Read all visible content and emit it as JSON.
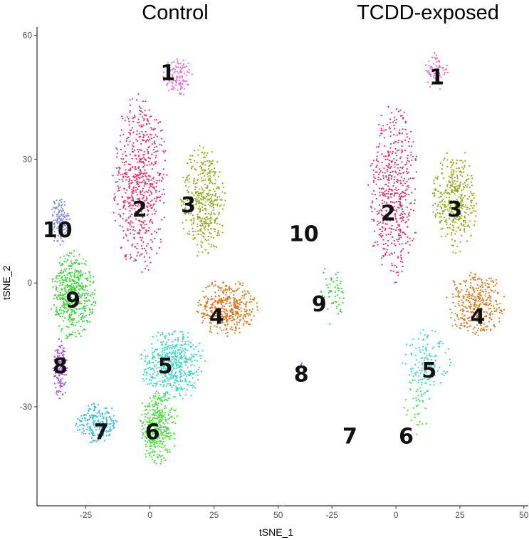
{
  "chart_data": {
    "type": "scatter",
    "xlabel": "tSNE_1",
    "ylabel": "tSNE_2",
    "xlim": [
      -44,
      52
    ],
    "ylim": [
      -54,
      62
    ],
    "x_ticks": [
      -25,
      0,
      25,
      50
    ],
    "y_ticks": [
      -30,
      0,
      30,
      60
    ],
    "grid": false,
    "clusters": [
      {
        "id": "1",
        "color": "#E36BE0"
      },
      {
        "id": "2",
        "color": "#E2306E"
      },
      {
        "id": "3",
        "color": "#93AA1C"
      },
      {
        "id": "4",
        "color": "#D67A21"
      },
      {
        "id": "5",
        "color": "#36D9C4"
      },
      {
        "id": "6",
        "color": "#47E039"
      },
      {
        "id": "7",
        "color": "#33B8E6"
      },
      {
        "id": "8",
        "color": "#A24CE0"
      },
      {
        "id": "9",
        "color": "#3CD63C"
      },
      {
        "id": "10",
        "color": "#7F84DB"
      }
    ],
    "panels": [
      {
        "title": "Control",
        "cluster_regions": [
          {
            "id": "1",
            "label_x": 7,
            "label_y": 51,
            "cx": 11,
            "cy": 50,
            "rx": 6,
            "ry": 5,
            "n": 110
          },
          {
            "id": "2",
            "label_x": -4,
            "label_y": 18,
            "cx": -4,
            "cy": 24,
            "rx": 11,
            "ry": 22,
            "n": 650
          },
          {
            "id": "3",
            "label_x": 15,
            "label_y": 19,
            "cx": 21,
            "cy": 20,
            "rx": 9,
            "ry": 14,
            "n": 420
          },
          {
            "id": "4",
            "label_x": 26,
            "label_y": -8,
            "cx": 30,
            "cy": -6,
            "rx": 12,
            "ry": 7,
            "n": 420
          },
          {
            "id": "5",
            "label_x": 6,
            "label_y": -20,
            "cx": 9,
            "cy": -20,
            "rx": 13,
            "ry": 9,
            "n": 520
          },
          {
            "id": "6",
            "label_x": 1,
            "label_y": -36,
            "cx": 3,
            "cy": -35,
            "rx": 8,
            "ry": 9,
            "n": 380
          },
          {
            "id": "7",
            "label_x": -19,
            "label_y": -36,
            "cx": -21,
            "cy": -34,
            "rx": 9,
            "ry": 5,
            "n": 200
          },
          {
            "id": "8",
            "label_x": -35,
            "label_y": -20,
            "cx": -35,
            "cy": -21,
            "rx": 3,
            "ry": 8,
            "n": 120
          },
          {
            "id": "9",
            "label_x": -30,
            "label_y": -4,
            "cx": -30,
            "cy": -3,
            "rx": 9,
            "ry": 11,
            "n": 520
          },
          {
            "id": "10",
            "label_x": -36,
            "label_y": 13,
            "cx": -35,
            "cy": 15,
            "rx": 4,
            "ry": 6,
            "n": 120
          }
        ]
      },
      {
        "title": "TCDD-exposed",
        "cluster_regions": [
          {
            "id": "1",
            "label_x": 16,
            "label_y": 50,
            "cx": 16,
            "cy": 51,
            "rx": 5,
            "ry": 5,
            "n": 70
          },
          {
            "id": "2",
            "label_x": -3,
            "label_y": 17,
            "cx": -1,
            "cy": 22,
            "rx": 10,
            "ry": 22,
            "n": 520
          },
          {
            "id": "3",
            "label_x": 23,
            "label_y": 18,
            "cx": 23,
            "cy": 20,
            "rx": 9,
            "ry": 13,
            "n": 380
          },
          {
            "id": "4",
            "label_x": 32,
            "label_y": -8,
            "cx": 31,
            "cy": -5,
            "rx": 12,
            "ry": 8,
            "n": 360
          },
          {
            "id": "5",
            "label_x": 13,
            "label_y": -21,
            "cx": 12,
            "cy": -20,
            "rx": 10,
            "ry": 9,
            "n": 150
          },
          {
            "id": "6",
            "label_x": 4,
            "label_y": -37,
            "cx": 8,
            "cy": -30,
            "rx": 5,
            "ry": 7,
            "n": 30
          },
          {
            "id": "7",
            "label_x": -18,
            "label_y": -37,
            "cx": -18,
            "cy": -37,
            "rx": 1,
            "ry": 1,
            "n": 0
          },
          {
            "id": "8",
            "label_x": -37,
            "label_y": -22,
            "cx": -37,
            "cy": -20,
            "rx": 1,
            "ry": 2,
            "n": 2
          },
          {
            "id": "9",
            "label_x": -30,
            "label_y": -5,
            "cx": -25,
            "cy": -3,
            "rx": 5,
            "ry": 8,
            "n": 60
          },
          {
            "id": "10",
            "label_x": -36,
            "label_y": 12,
            "cx": -31,
            "cy": 13,
            "rx": 1,
            "ry": 1,
            "n": 2
          }
        ]
      }
    ]
  }
}
